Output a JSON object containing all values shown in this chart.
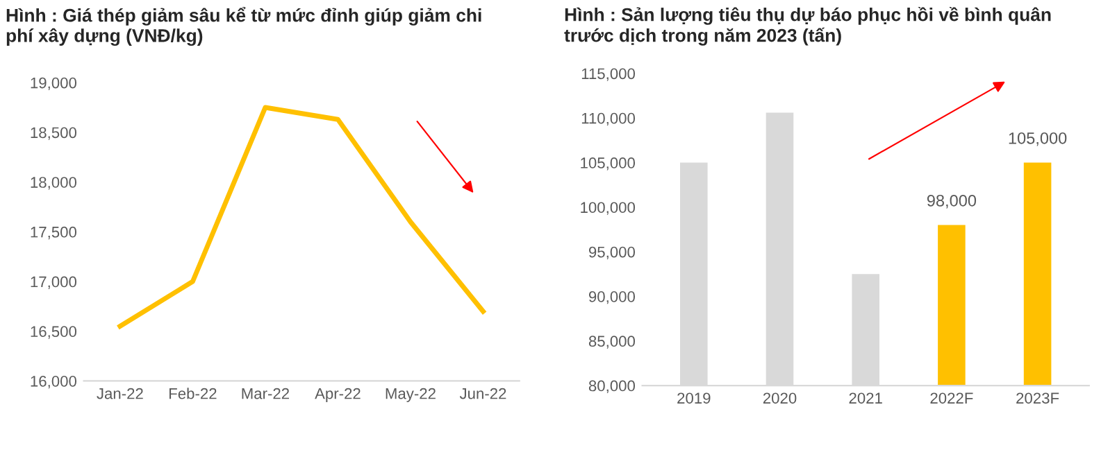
{
  "chart_data": [
    {
      "type": "line",
      "title": "Hình : Giá thép giảm sâu kể từ mức đỉnh giúp giảm chi phí xây dựng (VNĐ/kg)",
      "categories": [
        "Jan-22",
        "Feb-22",
        "Mar-22",
        "Apr-22",
        "May-22",
        "Jun-22"
      ],
      "series": [
        {
          "color": "#ffc000",
          "values": [
            16550,
            17000,
            18750,
            18630,
            17600,
            16700
          ]
        }
      ],
      "ylim": [
        16000,
        19000
      ],
      "yticks": [
        {
          "value": 16000,
          "label": "16,000"
        },
        {
          "value": 16500,
          "label": "16,500"
        },
        {
          "value": 17000,
          "label": "17,000"
        },
        {
          "value": 17500,
          "label": "17,500"
        },
        {
          "value": 18000,
          "label": "18,000"
        },
        {
          "value": 18500,
          "label": "18,500"
        },
        {
          "value": 19000,
          "label": "19,000"
        }
      ],
      "grid": false,
      "legend": false,
      "marker": "none",
      "line_style": "solid"
    },
    {
      "type": "bar",
      "title": "Hình : Sản lượng tiêu thụ dự báo phục hồi về bình quân trước dịch trong năm 2023 (tấn)",
      "categories": [
        "2019",
        "2020",
        "2021",
        "2022F",
        "2023F"
      ],
      "values": [
        105000,
        110600,
        92500,
        98000,
        105000
      ],
      "colors": [
        "#d9d9d9",
        "#d9d9d9",
        "#d9d9d9",
        "#ffc000",
        "#ffc000"
      ],
      "value_labels": [
        null,
        null,
        null,
        "98,000",
        "105,000"
      ],
      "ylim": [
        80000,
        115000
      ],
      "yticks": [
        {
          "value": 80000,
          "label": "80,000"
        },
        {
          "value": 85000,
          "label": "85,000"
        },
        {
          "value": 90000,
          "label": "90,000"
        },
        {
          "value": 95000,
          "label": "95,000"
        },
        {
          "value": 100000,
          "label": "100,000"
        },
        {
          "value": 105000,
          "label": "105,000"
        },
        {
          "value": 110000,
          "label": "110,000"
        },
        {
          "value": 115000,
          "label": "115,000"
        }
      ],
      "grid": false,
      "legend": false
    }
  ]
}
